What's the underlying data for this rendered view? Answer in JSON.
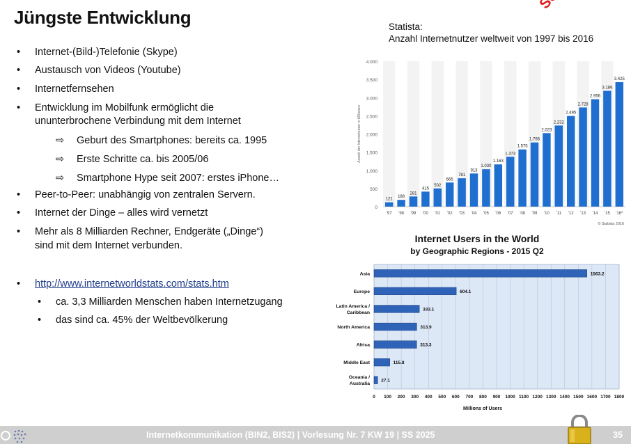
{
  "title": "Jüngste Entwicklung",
  "stamp": "Selbststudium",
  "bullets": [
    "Internet-(Bild-)Telefonie (Skype)",
    "Austausch von Videos (Youtube)",
    "Internetfernsehen",
    "Entwicklung im Mobilfunk ermöglicht die",
    "ununterbrochene Verbindung mit dem Internet",
    "Geburt des Smartphones: bereits ca. 1995",
    "Erste Schritte ca. bis 2005/06",
    "Smartphone Hype seit 2007: erstes iPhone…",
    "Peer-to-Peer: unabhängig von zentralen Servern.",
    "Internet der Dinge – alles wird vernetzt",
    "Mehr als 8 Milliarden Rechner, Endgeräte („Dinge“)",
    "sind mit dem Internet verbunden.",
    "http://www.internetworldstats.com/stats.htm",
    "ca. 3,3 Milliarden Menschen haben Internetzugang",
    "das sind ca. 45% der Weltbevölkerung"
  ],
  "bullet_glyph": "•",
  "arrow_glyph": "⇨",
  "source": {
    "line1": "Statista:",
    "line2": "Anzahl Internetnutzer weltweit von 1997 bis 2016"
  },
  "footer": {
    "text": "Internetkommunikation (BIN2, BIS2) | Vorlesung Nr. 7 KW 19 | SS 2025",
    "page": "35"
  },
  "chart_data": [
    {
      "type": "bar",
      "categories": [
        "'97",
        "'98",
        "'99",
        "'00",
        "'01",
        "'02",
        "'03",
        "'04",
        "'05",
        "'06",
        "'07",
        "'08",
        "'09",
        "'10",
        "'11",
        "'12",
        "'13",
        "'14",
        "'15",
        "'16*"
      ],
      "values": [
        121,
        188,
        281,
        415,
        502,
        665,
        781,
        913,
        1030,
        1163,
        1373,
        1575,
        1766,
        2023,
        2232,
        2495,
        2728,
        2956,
        3186,
        3425
      ],
      "value_labels": [
        "121",
        "188",
        "281",
        "415",
        "502",
        "665",
        "781",
        "913",
        "1.030",
        "1.163",
        "1.373",
        "1.575",
        "1.766",
        "2.023",
        "2.232",
        "2.495",
        "2.728",
        "2.956",
        "3.186",
        "3.425"
      ],
      "yticks": [
        0,
        500,
        1000,
        1500,
        2000,
        2500,
        3000,
        3500,
        4000
      ],
      "ytick_labels": [
        "0",
        "500",
        "1.000",
        "1.500",
        "2.000",
        "2.500",
        "3.000",
        "3.500",
        "4.000"
      ],
      "ylim": [
        0,
        4000
      ],
      "ylabel": "Anzahl der Internetnutzer in Millionen",
      "credit": "© Statista 2016",
      "bar_color": "#1f6fd1",
      "grid": false
    },
    {
      "type": "bar",
      "orientation": "horizontal",
      "title": "Internet Users in the World",
      "subtitle": "by Geographic Regions - 2015 Q2",
      "categories": [
        "Asia",
        "Europe",
        "Latin America / Caribbean",
        "North America",
        "Africa",
        "Middle East",
        "Oceania / Australia"
      ],
      "values": [
        1563.2,
        604.1,
        333.1,
        313.9,
        313.3,
        115.8,
        27.1
      ],
      "xlim": [
        0,
        1800
      ],
      "xticks": [
        0,
        100,
        200,
        300,
        400,
        500,
        600,
        700,
        800,
        900,
        1000,
        1100,
        1200,
        1300,
        1400,
        1500,
        1600,
        1700,
        1800
      ],
      "xlabel": "Millions of Users",
      "bar_color": "#2e63b8",
      "grid": true
    }
  ]
}
